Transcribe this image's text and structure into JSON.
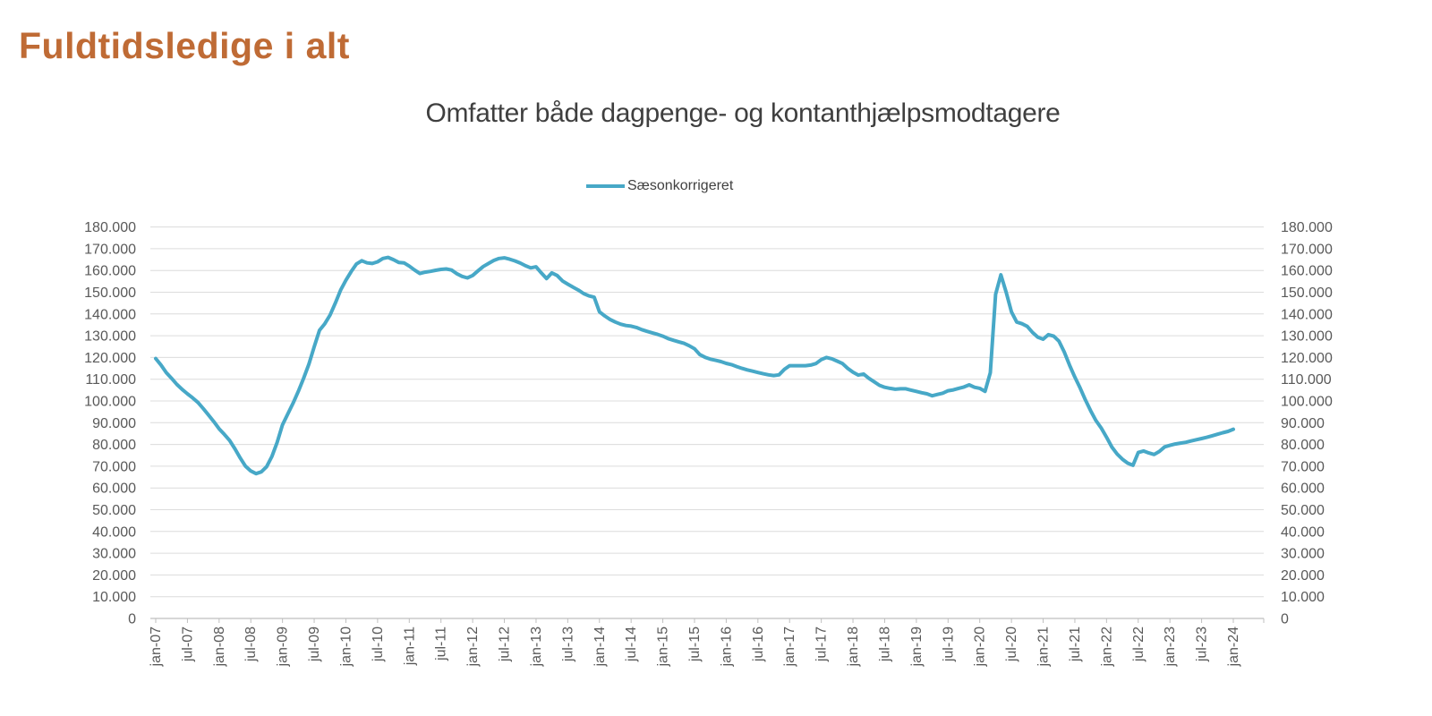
{
  "header": {
    "title": "Fuldtidsledige i alt",
    "title_color": "#BF6B35"
  },
  "chart": {
    "subtitle": "Omfatter både dagpenge- og kontanthjælpsmodtagere",
    "subtitle_color": "#3F3F3F",
    "legend": [
      {
        "label": "Sæsonkorrigeret",
        "color": "#47A8C7"
      }
    ]
  },
  "chart_data": {
    "type": "line",
    "title": "Omfatter både dagpenge- og kontanthjælpsmodtagere",
    "xlabel": "",
    "ylabel": "",
    "grid": "horizontal",
    "legend_position": "top-center",
    "ylim": [
      0,
      180000
    ],
    "y_tick_step": 10000,
    "y_tick_labels": [
      "0",
      "10.000",
      "20.000",
      "30.000",
      "40.000",
      "50.000",
      "60.000",
      "70.000",
      "80.000",
      "90.000",
      "100.000",
      "110.000",
      "120.000",
      "130.000",
      "140.000",
      "150.000",
      "160.000",
      "170.000",
      "180.000"
    ],
    "x_start": "jan-07",
    "x_end": "jan-24",
    "x_frequency": "monthly",
    "x_tick_every_months": 6,
    "x_tick_labels": [
      "jan-07",
      "jul-07",
      "jan-08",
      "jul-08",
      "jan-09",
      "jul-09",
      "jan-10",
      "jul-10",
      "jan-11",
      "jul-11",
      "jan-12",
      "jul-12",
      "jan-13",
      "jul-13",
      "jan-14",
      "jul-14",
      "jan-15",
      "jul-15",
      "jan-16",
      "jul-16",
      "jan-17",
      "jul-17",
      "jan-18",
      "jul-18",
      "jan-19",
      "jul-19",
      "jan-20",
      "jul-20",
      "jan-21",
      "jul-21",
      "jan-22",
      "jul-22",
      "jan-23",
      "jul-23",
      "jan-24"
    ],
    "colors": {
      "gridline": "#DCDCDC",
      "axis": "#BFBFBF",
      "tick_label": "#595959"
    },
    "series": [
      {
        "name": "Sæsonkorrigeret",
        "color": "#47A8C7",
        "values": [
          119500,
          116500,
          113000,
          110400,
          107600,
          105300,
          103300,
          101400,
          99300,
          96500,
          93500,
          90500,
          87200,
          84600,
          81800,
          78000,
          73800,
          70000,
          67800,
          66600,
          67400,
          69800,
          74500,
          81000,
          89000,
          94000,
          99000,
          104500,
          110500,
          117000,
          125000,
          132500,
          135500,
          139500,
          145000,
          151000,
          155500,
          159500,
          163000,
          164500,
          163500,
          163200,
          164000,
          165500,
          166000,
          165000,
          163700,
          163500,
          162000,
          160200,
          158600,
          159200,
          159600,
          160100,
          160500,
          160700,
          160200,
          158500,
          157300,
          156600,
          157700,
          159800,
          161800,
          163200,
          164600,
          165500,
          165800,
          165200,
          164400,
          163400,
          162200,
          161200,
          161700,
          158900,
          156300,
          158900,
          157700,
          155200,
          153700,
          152300,
          151000,
          149400,
          148300,
          147700,
          141000,
          139100,
          137500,
          136300,
          135300,
          134700,
          134400,
          133800,
          132800,
          132000,
          131300,
          130600,
          129800,
          128700,
          127900,
          127200,
          126500,
          125400,
          124000,
          121300,
          120100,
          119200,
          118700,
          118100,
          117300,
          116700,
          115800,
          115000,
          114300,
          113700,
          113100,
          112500,
          112000,
          111700,
          112000,
          114500,
          116200,
          116200,
          116200,
          116200,
          116500,
          117200,
          119000,
          120000,
          119400,
          118300,
          117200,
          115000,
          113200,
          111900,
          112400,
          110400,
          108800,
          107200,
          106300,
          105800,
          105400,
          105600,
          105600,
          105000,
          104400,
          103800,
          103300,
          102400,
          103000,
          103600,
          104700,
          105100,
          105800,
          106400,
          107400,
          106300,
          105800,
          104400,
          113000,
          149000,
          158000,
          150000,
          141000,
          136300,
          135500,
          134300,
          131500,
          129300,
          128400,
          130500,
          129800,
          127500,
          122500,
          116500,
          111000,
          106000,
          100500,
          95500,
          91000,
          87500,
          83300,
          78800,
          75600,
          73200,
          71400,
          70400,
          76300,
          77000,
          76100,
          75400,
          76800,
          78900,
          79600,
          80200,
          80600,
          81000,
          81600,
          82200,
          82700,
          83300,
          84000,
          84700,
          85400,
          86000,
          87000
        ]
      }
    ]
  }
}
